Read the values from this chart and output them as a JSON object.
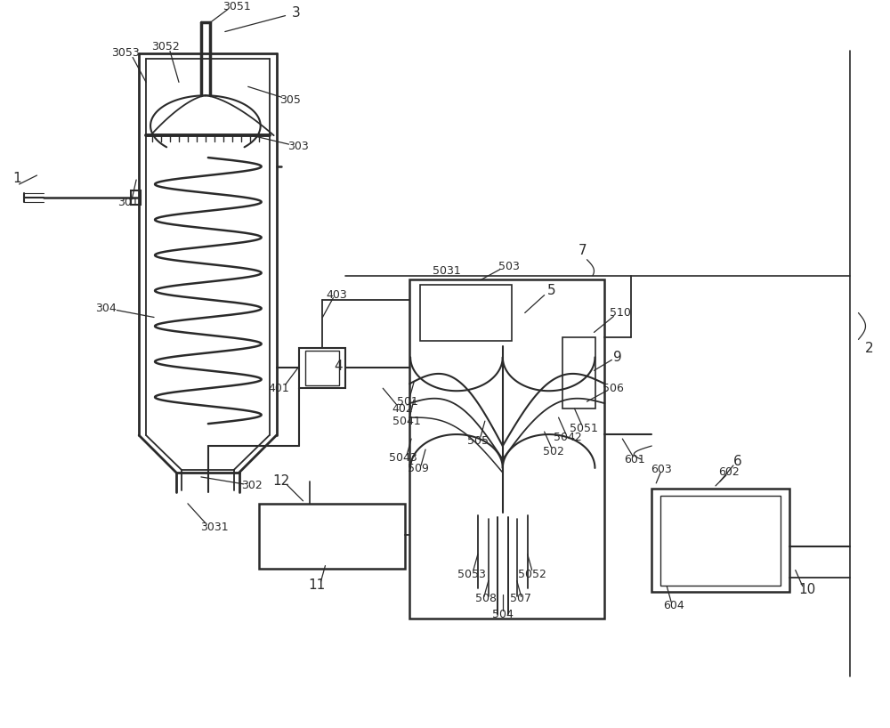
{
  "bg_color": "#ffffff",
  "line_color": "#2a2a2a",
  "label_color": "#2a2a2a",
  "figsize": [
    10.0,
    8.18
  ],
  "dpi": 100
}
